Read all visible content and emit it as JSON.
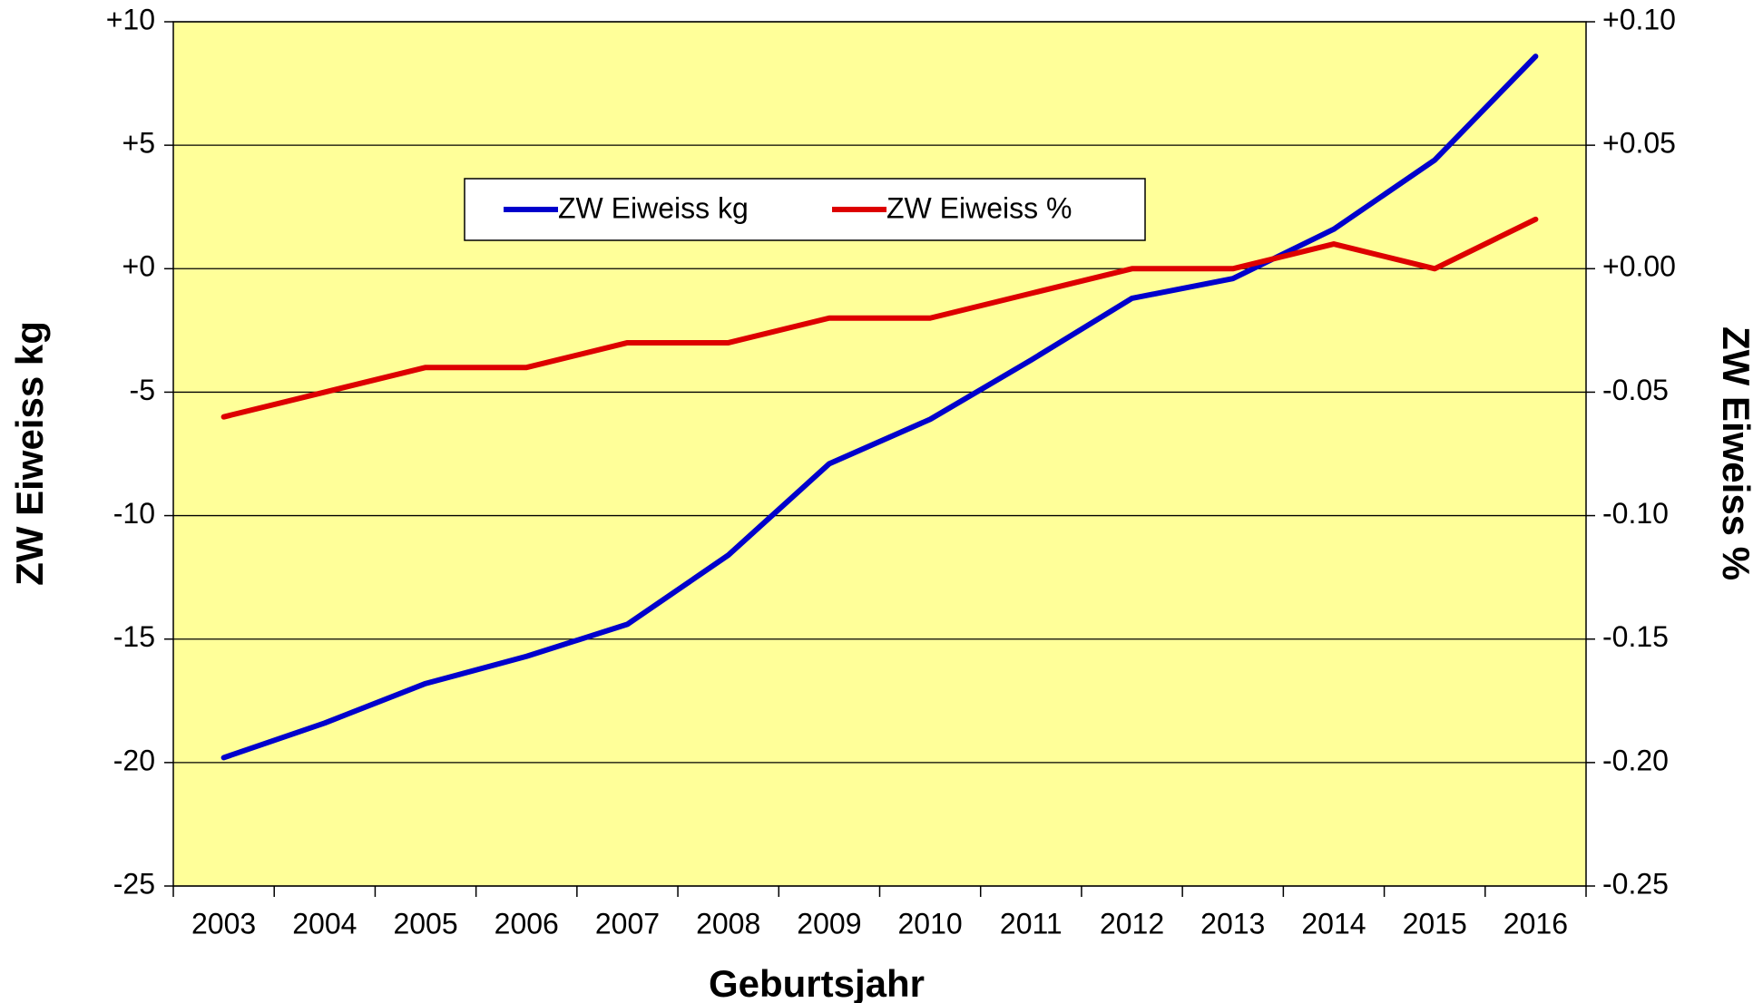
{
  "chart_data": {
    "type": "line",
    "x_label": "Geburtsjahr",
    "y_label": "ZW Eiweiss kg",
    "y2_label": "ZW Eiweiss %",
    "categories": [
      "2003",
      "2004",
      "2005",
      "2006",
      "2007",
      "2008",
      "2009",
      "2010",
      "2011",
      "2012",
      "2013",
      "2014",
      "2015",
      "2016"
    ],
    "series": [
      {
        "name": "ZW Eiweiss kg",
        "color": "#0000cc",
        "values": [
          -19.8,
          -18.4,
          -16.8,
          -15.7,
          -14.4,
          -11.6,
          -7.9,
          -6.1,
          -3.7,
          -1.2,
          -0.4,
          1.6,
          4.4,
          8.6
        ]
      },
      {
        "name": "ZW Eiweiss %",
        "color": "#dd0000",
        "axis": "y2",
        "values": [
          -0.06,
          -0.05,
          -0.04,
          -0.04,
          -0.03,
          -0.03,
          -0.02,
          -0.02,
          -0.01,
          0.0,
          0.0,
          0.01,
          0.0,
          0.02
        ]
      }
    ],
    "ylim": [
      -25,
      10
    ],
    "yticks": [
      {
        "value": 10,
        "label": "+10"
      },
      {
        "value": 5,
        "label": "+5"
      },
      {
        "value": 0,
        "label": "+0"
      },
      -5,
      -10,
      -15,
      -20,
      -25
    ],
    "y2lim": [
      -0.25,
      0.1
    ],
    "y2ticks": [
      {
        "value": 0.1,
        "label": "+0.10"
      },
      {
        "value": 0.05,
        "label": "+0.05"
      },
      {
        "value": 0,
        "label": "+0.00"
      },
      {
        "value": -0.05,
        "label": "-0.05"
      },
      {
        "value": -0.1,
        "label": "-0.10"
      },
      {
        "value": -0.15,
        "label": "-0.15"
      },
      {
        "value": -0.2,
        "label": "-0.20"
      },
      {
        "value": -0.25,
        "label": "-0.25"
      }
    ],
    "grid": true,
    "background": "#ffff99",
    "legend": "top"
  }
}
